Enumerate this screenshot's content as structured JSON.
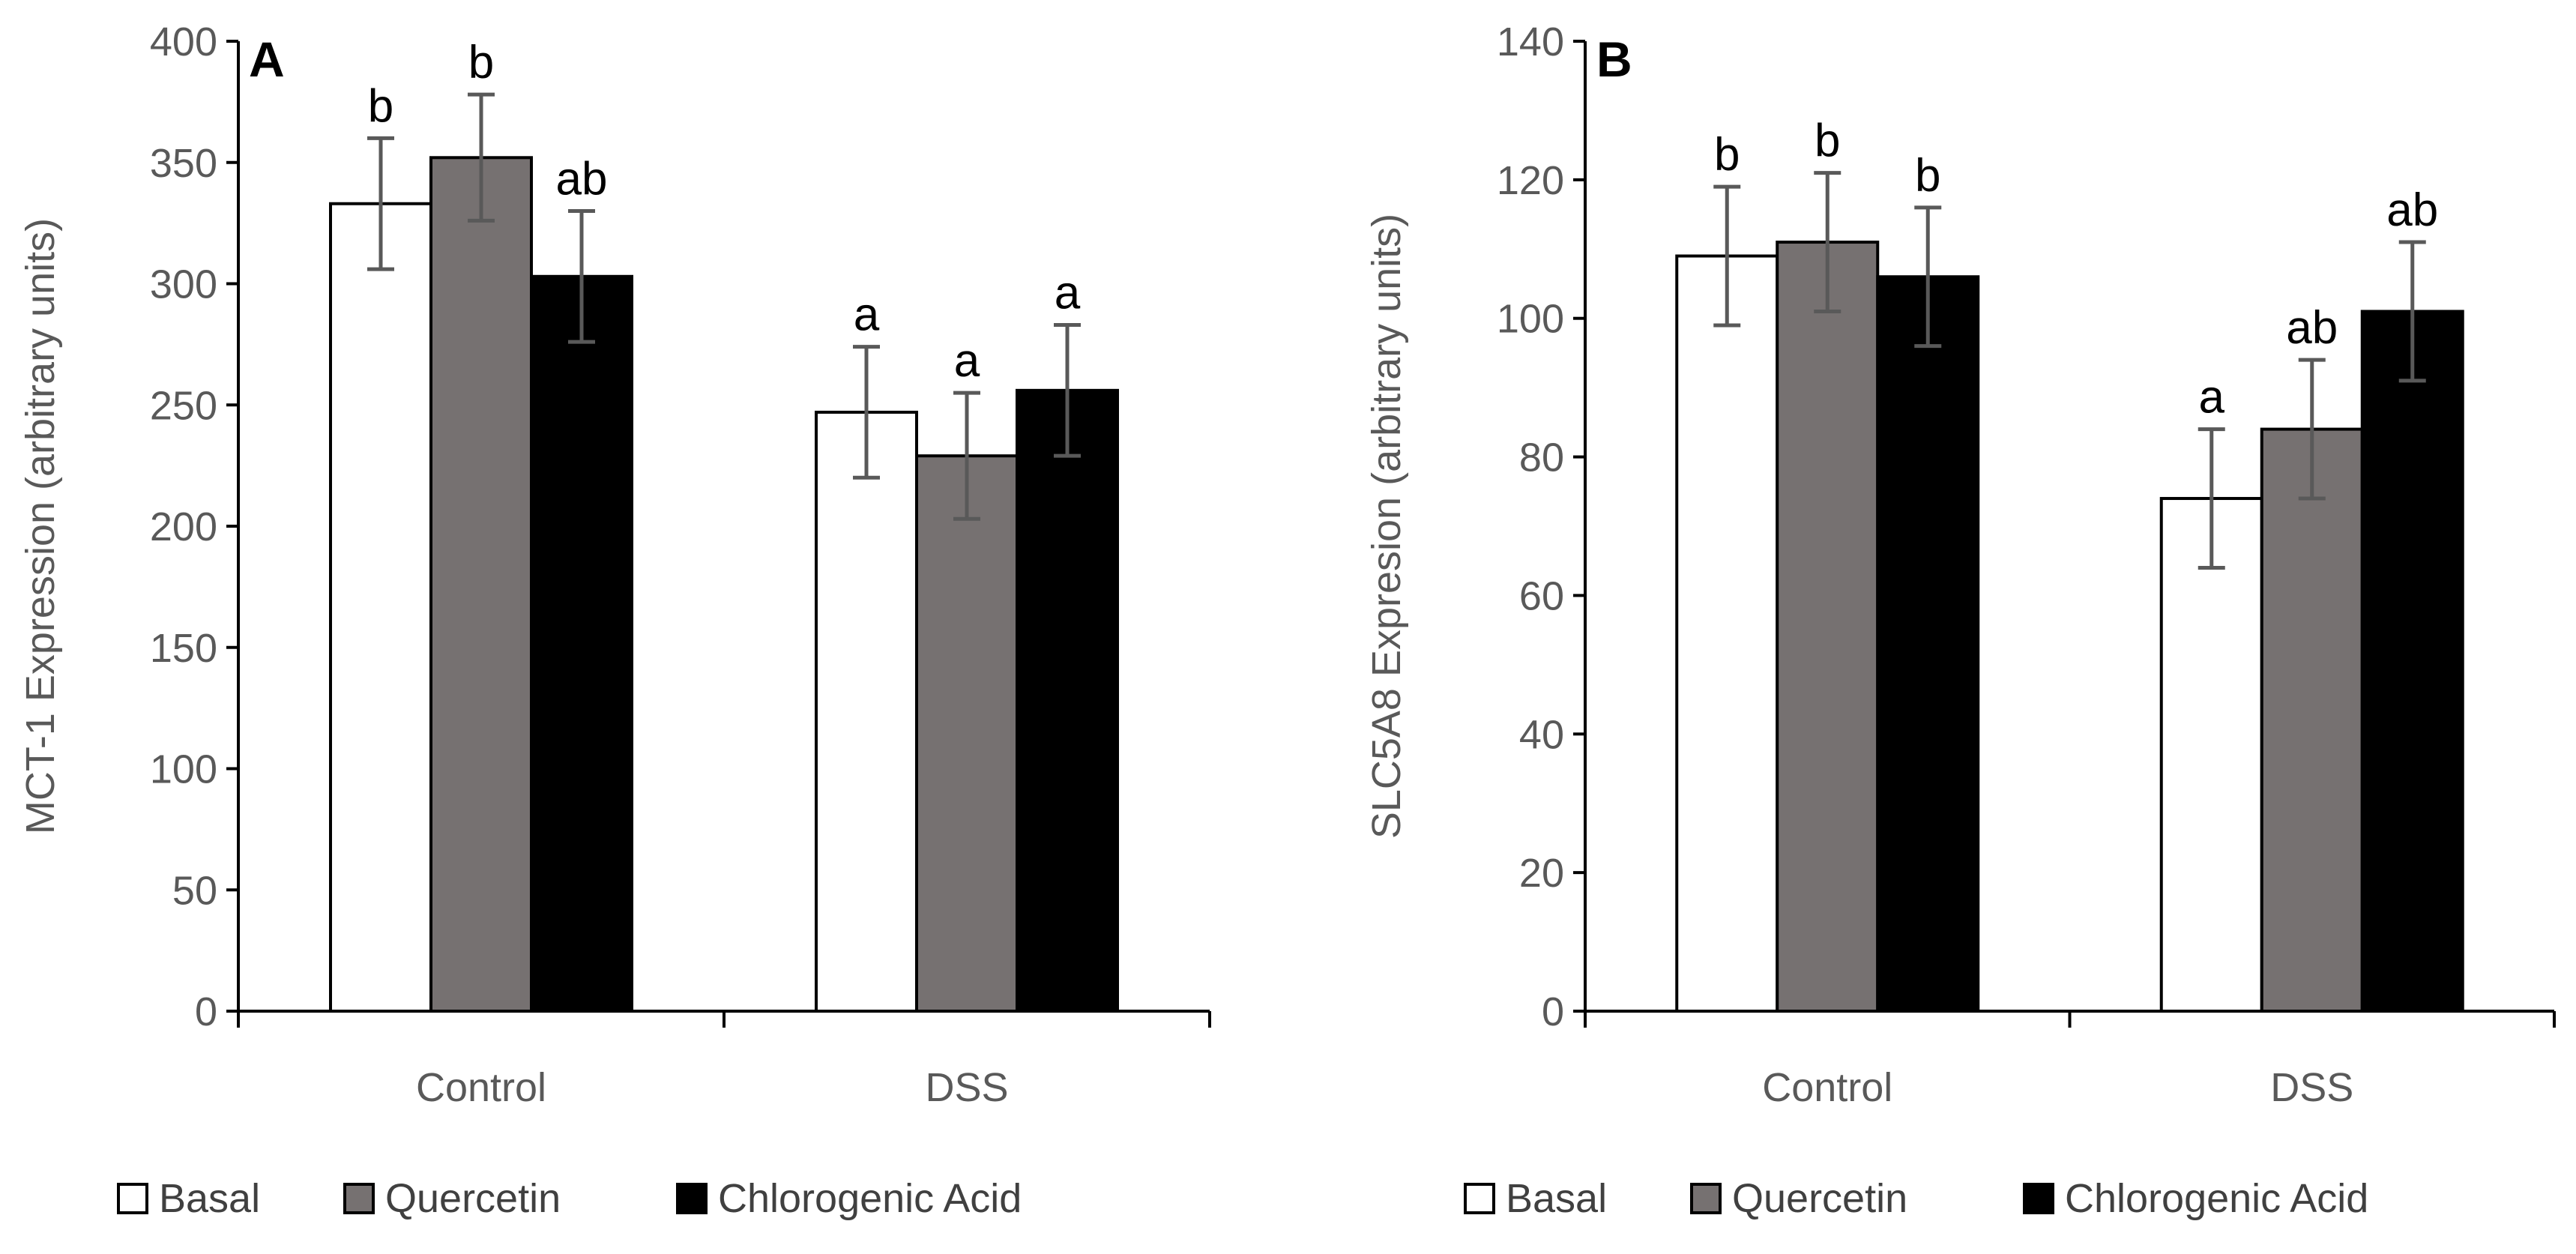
{
  "legend": [
    {
      "name": "Basal",
      "color": "#ffffff"
    },
    {
      "name": "Quercetin",
      "color": "#767171"
    },
    {
      "name": "Chlorogenic Acid",
      "color": "#000000"
    }
  ],
  "chart_data": [
    {
      "type": "bar",
      "panel_label": "A",
      "title": "",
      "xlabel": "",
      "ylabel": "MCT-1 Expression (arbitrary units)",
      "ylim": [
        0,
        400
      ],
      "yticks": [
        0,
        50,
        100,
        150,
        200,
        250,
        300,
        350,
        400
      ],
      "categories": [
        "Control",
        "DSS"
      ],
      "series": [
        {
          "name": "Basal",
          "color": "#ffffff",
          "values": [
            333,
            247
          ],
          "errors": [
            27,
            27
          ],
          "labels": [
            "b",
            "a"
          ]
        },
        {
          "name": "Quercetin",
          "color": "#767171",
          "values": [
            352,
            229
          ],
          "errors": [
            26,
            26
          ],
          "labels": [
            "b",
            "a"
          ]
        },
        {
          "name": "Chlorogenic Acid",
          "color": "#000000",
          "values": [
            303,
            256
          ],
          "errors": [
            27,
            27
          ],
          "labels": [
            "ab",
            "a"
          ]
        }
      ],
      "legend_position": "bottom"
    },
    {
      "type": "bar",
      "panel_label": "B",
      "title": "",
      "xlabel": "",
      "ylabel": "SLC5A8 Expresion (arbitrary units)",
      "ylim": [
        0,
        140
      ],
      "yticks": [
        0,
        20,
        40,
        60,
        80,
        100,
        120,
        140
      ],
      "categories": [
        "Control",
        "DSS"
      ],
      "series": [
        {
          "name": "Basal",
          "color": "#ffffff",
          "values": [
            109,
            74
          ],
          "errors": [
            10,
            10
          ],
          "labels": [
            "b",
            "a"
          ]
        },
        {
          "name": "Quercetin",
          "color": "#767171",
          "values": [
            111,
            84
          ],
          "errors": [
            10,
            10
          ],
          "labels": [
            "b",
            "ab"
          ]
        },
        {
          "name": "Chlorogenic Acid",
          "color": "#000000",
          "values": [
            106,
            101
          ],
          "errors": [
            10,
            10
          ],
          "labels": [
            "b",
            "ab"
          ]
        }
      ],
      "legend_position": "bottom"
    }
  ]
}
